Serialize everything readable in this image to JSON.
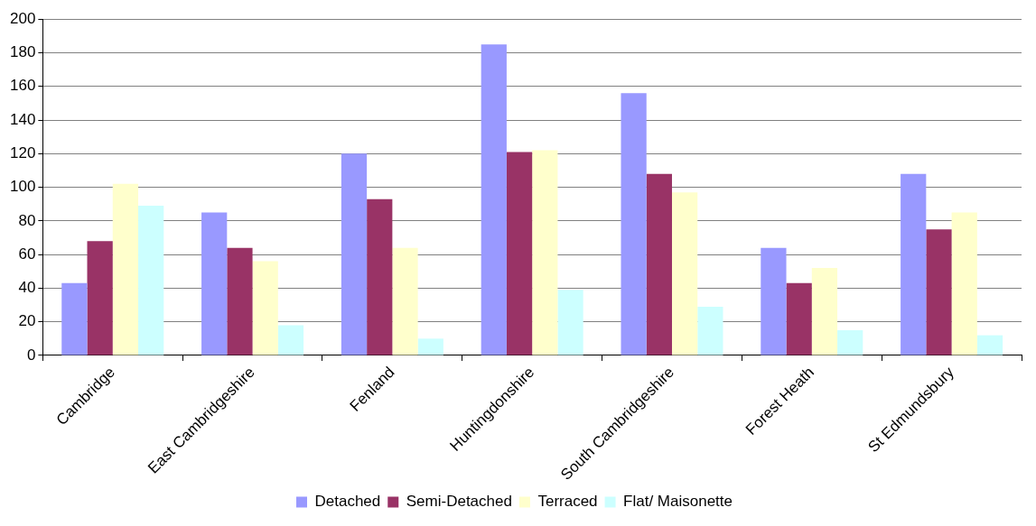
{
  "chart_data": {
    "type": "bar",
    "categories": [
      "Cambridge",
      "East Cambridgeshire",
      "Fenland",
      "Huntingdonshire",
      "South Cambridgeshire",
      "Forest Heath",
      "St Edmundsbury"
    ],
    "series": [
      {
        "name": "Detached",
        "color": "#9999ff",
        "values": [
          43,
          85,
          120,
          185,
          156,
          64,
          108
        ]
      },
      {
        "name": "Semi-Detached",
        "color": "#993366",
        "values": [
          68,
          64,
          93,
          121,
          108,
          43,
          75
        ]
      },
      {
        "name": "Terraced",
        "color": "#ffffcc",
        "values": [
          102,
          56,
          64,
          122,
          97,
          52,
          85
        ]
      },
      {
        "name": "Flat/ Maisonette",
        "color": "#ccffff",
        "values": [
          89,
          18,
          10,
          39,
          29,
          15,
          12
        ]
      }
    ],
    "ylim": [
      0,
      200
    ],
    "yticks": [
      0,
      20,
      40,
      60,
      80,
      100,
      120,
      140,
      160,
      180,
      200
    ],
    "grid": "y",
    "legend": "bottom"
  }
}
